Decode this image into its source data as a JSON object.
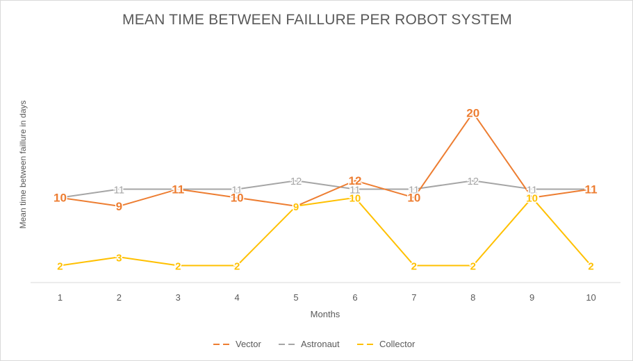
{
  "chart_data": {
    "type": "line",
    "title": "MEAN TIME BETWEEN FAILLURE PER ROBOT SYSTEM",
    "xlabel": "Months",
    "ylabel": "Mean time between faillure in days",
    "x": [
      1,
      2,
      3,
      4,
      5,
      6,
      7,
      8,
      9,
      10
    ],
    "ylim": [
      0,
      22
    ],
    "grid": false,
    "legend_position": "bottom",
    "series": [
      {
        "name": "Vector",
        "color": "#ed7d31",
        "values": [
          10,
          9,
          11,
          10,
          9,
          12,
          10,
          20,
          10,
          11
        ]
      },
      {
        "name": "Astronaut",
        "color": "#a5a5a5",
        "values": [
          10,
          11,
          11,
          11,
          12,
          11,
          11,
          12,
          11,
          11
        ]
      },
      {
        "name": "Collector",
        "color": "#ffc000",
        "values": [
          2,
          3,
          2,
          2,
          9,
          10,
          2,
          2,
          10,
          2
        ]
      }
    ]
  }
}
